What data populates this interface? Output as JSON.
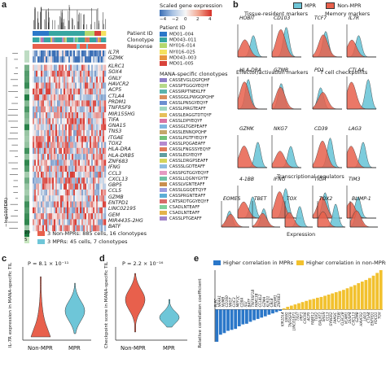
{
  "colors": {
    "mpr": "#6ec6d8",
    "non_mpr": "#e8604c",
    "heat_low": "#3b6fb6",
    "heat_mid": "#f7f7f7",
    "heat_high": "#d62f27",
    "non_mpr_bar": "#f2c12e",
    "mpr_bar": "#2a77c9"
  },
  "panel_a": {
    "letter": "a",
    "row_labels": [
      "Patient ID",
      "Clonotype",
      "Response"
    ],
    "scale_title": "Scaled gene expression",
    "scale_ticks": [
      "−4",
      "−2",
      "0",
      "2",
      "4"
    ],
    "patient_title": "Patient ID",
    "patients": [
      {
        "id": "MD01–004",
        "color": "#2b78c9"
      },
      {
        "id": "MD043–011",
        "color": "#37a6a1"
      },
      {
        "id": "NY016–014",
        "color": "#b4d86d"
      },
      {
        "id": "NY016–025",
        "color": "#f4e15e"
      },
      {
        "id": "MD043–003",
        "color": "#e7953c"
      },
      {
        "id": "MD01–005",
        "color": "#d8423a"
      }
    ],
    "genes": [
      "IL7R",
      "GZMK",
      "KLRC1",
      "SOX4",
      "GNLY",
      "HAVCR2",
      "ACP5",
      "CTLA4",
      "PRDM1",
      "TNFRSF9",
      "MIR155HG",
      "TIFA",
      "GNA15",
      "TNS3",
      "ITGAE",
      "TOX2",
      "HLA-DRA",
      "HLA-DRB5",
      "ZNF683",
      "IFNG",
      "CCL3",
      "CXCL13",
      "GBP5",
      "CCL5",
      "GZMB",
      "ENTPD1",
      "LINC02195",
      "GEM",
      "MIR4435-2HG",
      "BATF"
    ],
    "clonotype_title": "MANA-specific clonotypes",
    "clonotypes": [
      {
        "seq": "CASSEVGLQGPQHF",
        "color": "#8e7fc7"
      },
      {
        "seq": "CASSPTGGGYEQYF",
        "color": "#b6d98a"
      },
      {
        "seq": "CASSIRPTNEKLFF",
        "color": "#5ab4ac"
      },
      {
        "seq": "CASSGGLPWGQPQHF",
        "color": "#d98e5c"
      },
      {
        "seq": "CASSLPNSGYEQYF",
        "color": "#6c8fd1"
      },
      {
        "seq": "CASSLPIRGTEAFF",
        "color": "#9fd7c1"
      },
      {
        "seq": "CASSLEAGGTDTQYF",
        "color": "#e6c05a"
      },
      {
        "seq": "CASSLDPYEQYF",
        "color": "#d973a3"
      },
      {
        "seq": "CASSGLTGEPEAFF",
        "color": "#7fb6e0"
      },
      {
        "seq": "CASSLENNQPQHF",
        "color": "#c4a76b"
      },
      {
        "seq": "CASSLPGTFYEQYF",
        "color": "#72c27a"
      },
      {
        "seq": "CASSLPQGAEAFF",
        "color": "#b48ad0"
      },
      {
        "seq": "CASSLFNGSSYEQYF",
        "color": "#e0795a"
      },
      {
        "seq": "CASSLEGYEQYF",
        "color": "#5f9ea0"
      },
      {
        "seq": "CASSLDRGPSEAFF",
        "color": "#d4d45a"
      },
      {
        "seq": "CASSSLGDTEAFF",
        "color": "#8fbde0"
      },
      {
        "seq": "CASSPGTGGYEQYF",
        "color": "#e59ac2"
      },
      {
        "seq": "CASSLLQGNYGYTF",
        "color": "#6fc1a5"
      },
      {
        "seq": "CASSLVGNTEAFF",
        "color": "#c98f4f"
      },
      {
        "seq": "CASSLGGQETQYF",
        "color": "#9d9de0"
      },
      {
        "seq": "CASSPRGNTEAFF",
        "color": "#5caed6"
      },
      {
        "seq": "CATSRDTGGYEQYF",
        "color": "#d86a6a"
      },
      {
        "seq": "CSADLNTEAFF",
        "color": "#7fcf9b"
      },
      {
        "seq": "CSADLNTEAFF",
        "color": "#e3b34a"
      },
      {
        "seq": "CASSLPTGEAFF",
        "color": "#a184c9"
      }
    ],
    "fdr_label": "−log10(FDR)",
    "fdr_ticks": [
      "20",
      "5"
    ],
    "legend_non_mpr": "3 Non-MPRs: 885 cells, 16 clonotypes",
    "legend_mpr": "3 MPRs: 45 cells, 7 clonotypes"
  },
  "panel_b": {
    "letter": "b",
    "legend": {
      "mpr": "MPR",
      "non_mpr": "Non-MPR"
    },
    "groups": [
      "Tissue-resident markers",
      "Memory markers",
      "Effector/activation markers",
      "T cell checkpoints",
      "Transcriptional regulators"
    ],
    "genes": [
      "HOBIT",
      "CD103",
      "TCF7",
      "IL7R",
      "HLA-DRA",
      "GZMB",
      "PD1",
      "CTLA4",
      "GZMK",
      "NKG7",
      "CD39",
      "LAG3",
      "4-1BB",
      "IFNG",
      "TIGIT",
      "TIM3",
      "EOMES",
      "TBET",
      "TOX",
      "TOX2",
      "BLIMP-1"
    ],
    "xlabel": "Expression"
  },
  "panel_c": {
    "letter": "c",
    "pvalue": "P = 8.1 × 10⁻¹¹",
    "ylabel": "IL-7R expression in MANA-specific TIL",
    "categories": [
      "Non-MPR",
      "MPR"
    ]
  },
  "panel_d": {
    "letter": "d",
    "pvalue": "P = 2.2 × 10⁻¹⁶",
    "ylabel": "Checkpoint score in MANA-specific TIL",
    "categories": [
      "Non-MPR",
      "MPR"
    ]
  },
  "panel_e": {
    "letter": "e",
    "ylabel": "Relative correlation coefficient",
    "legend_mpr": "Higher correlation in MPRs",
    "legend_non_mpr": "Higher correlation in non-MPRs"
  },
  "chart_data": [
    {
      "type": "bar",
      "panel": "e",
      "ylabel": "Relative correlation coefficient",
      "categories": [
        "PLEC",
        "NRAA1",
        "NUMB",
        "CD160",
        "NKG7",
        "CLIC3",
        "MEF2C",
        "CD8A",
        "ID2",
        "BATF",
        "TNFRSF1B",
        "FAM13B",
        "CCL4L2",
        "GZMA",
        "KLRD1",
        "CBLB",
        "PRDM1",
        "ZNF683",
        "KIR2DL4",
        "SIRPG",
        "TNFRSF9",
        "LINC01871",
        "TIGIT",
        "PRF1",
        "CXCR6",
        "ACP5",
        "FABP12",
        "TOX2",
        "GALNT2",
        "SRGN",
        "CCL3",
        "SYNGR2",
        "FAM3C",
        "CTSW",
        "CLEC2B",
        "VCAM1",
        "DUSP4",
        "CXCL13",
        "GZMB",
        "HAVCR2",
        "LAG3",
        "CTLA4",
        "ENTPD1",
        "PDCD1",
        "TOX"
      ],
      "values": [
        -1.0,
        -0.78,
        -0.73,
        -0.66,
        -0.63,
        -0.6,
        -0.52,
        -0.46,
        -0.44,
        -0.38,
        -0.33,
        -0.29,
        -0.25,
        -0.21,
        -0.16,
        -0.12,
        -0.08,
        -0.04,
        0.03,
        0.07,
        0.1,
        0.13,
        0.16,
        0.19,
        0.22,
        0.25,
        0.27,
        0.3,
        0.32,
        0.35,
        0.38,
        0.41,
        0.44,
        0.47,
        0.5,
        0.54,
        0.58,
        0.62,
        0.67,
        0.71,
        0.75,
        0.8,
        0.86,
        0.93,
        1.0
      ],
      "legend": [
        "Higher correlation in MPRs",
        "Higher correlation in non-MPRs"
      ]
    }
  ]
}
